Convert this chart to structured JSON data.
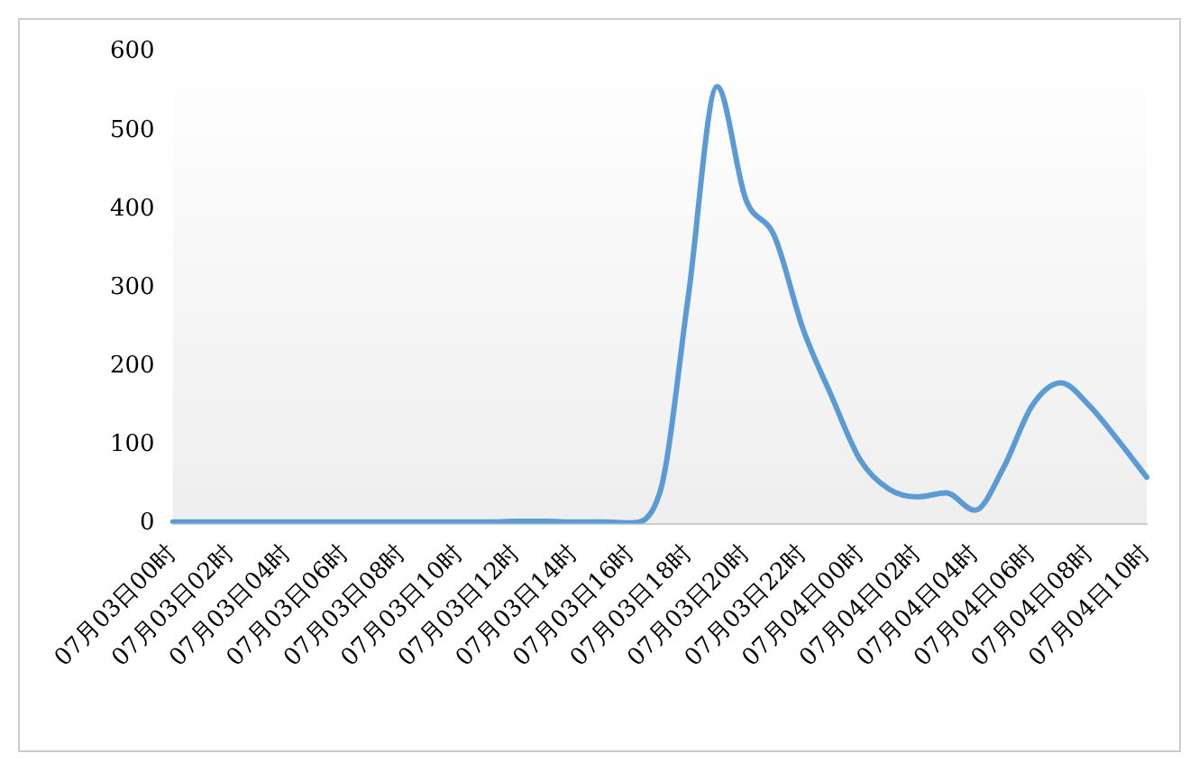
{
  "chart_data": {
    "type": "line",
    "categories": [
      "07月03日00时",
      null,
      "07月03日02时",
      null,
      "07月03日04时",
      null,
      "07月03日06时",
      null,
      "07月03日08时",
      null,
      "07月03日10时",
      null,
      "07月03日12时",
      null,
      "07月03日14时",
      null,
      "07月03日16时",
      null,
      "07月03日18时",
      null,
      "07月03日20时",
      null,
      "07月03日22时",
      null,
      "07月04日00时",
      null,
      "07月04日02时",
      null,
      "07月04日04时",
      null,
      "07月04日06时",
      null,
      "07月04日08时",
      null,
      "07月04日10时"
    ],
    "series": [
      {
        "color": "#5b9bd5",
        "values": [
          2,
          2,
          2,
          2,
          2,
          2,
          2,
          2,
          2,
          2,
          2,
          2,
          3,
          3,
          2,
          2,
          1,
          39,
          290,
          556,
          413,
          366,
          248,
          162,
          81,
          44,
          34,
          39,
          17,
          71,
          150,
          179,
          150,
          106,
          59
        ]
      }
    ],
    "ylim": [
      0,
      600
    ],
    "yticks": [
      0,
      100,
      200,
      300,
      400,
      500,
      600
    ],
    "grid": false,
    "legend": false,
    "marker": "none",
    "line_style": "solid"
  }
}
